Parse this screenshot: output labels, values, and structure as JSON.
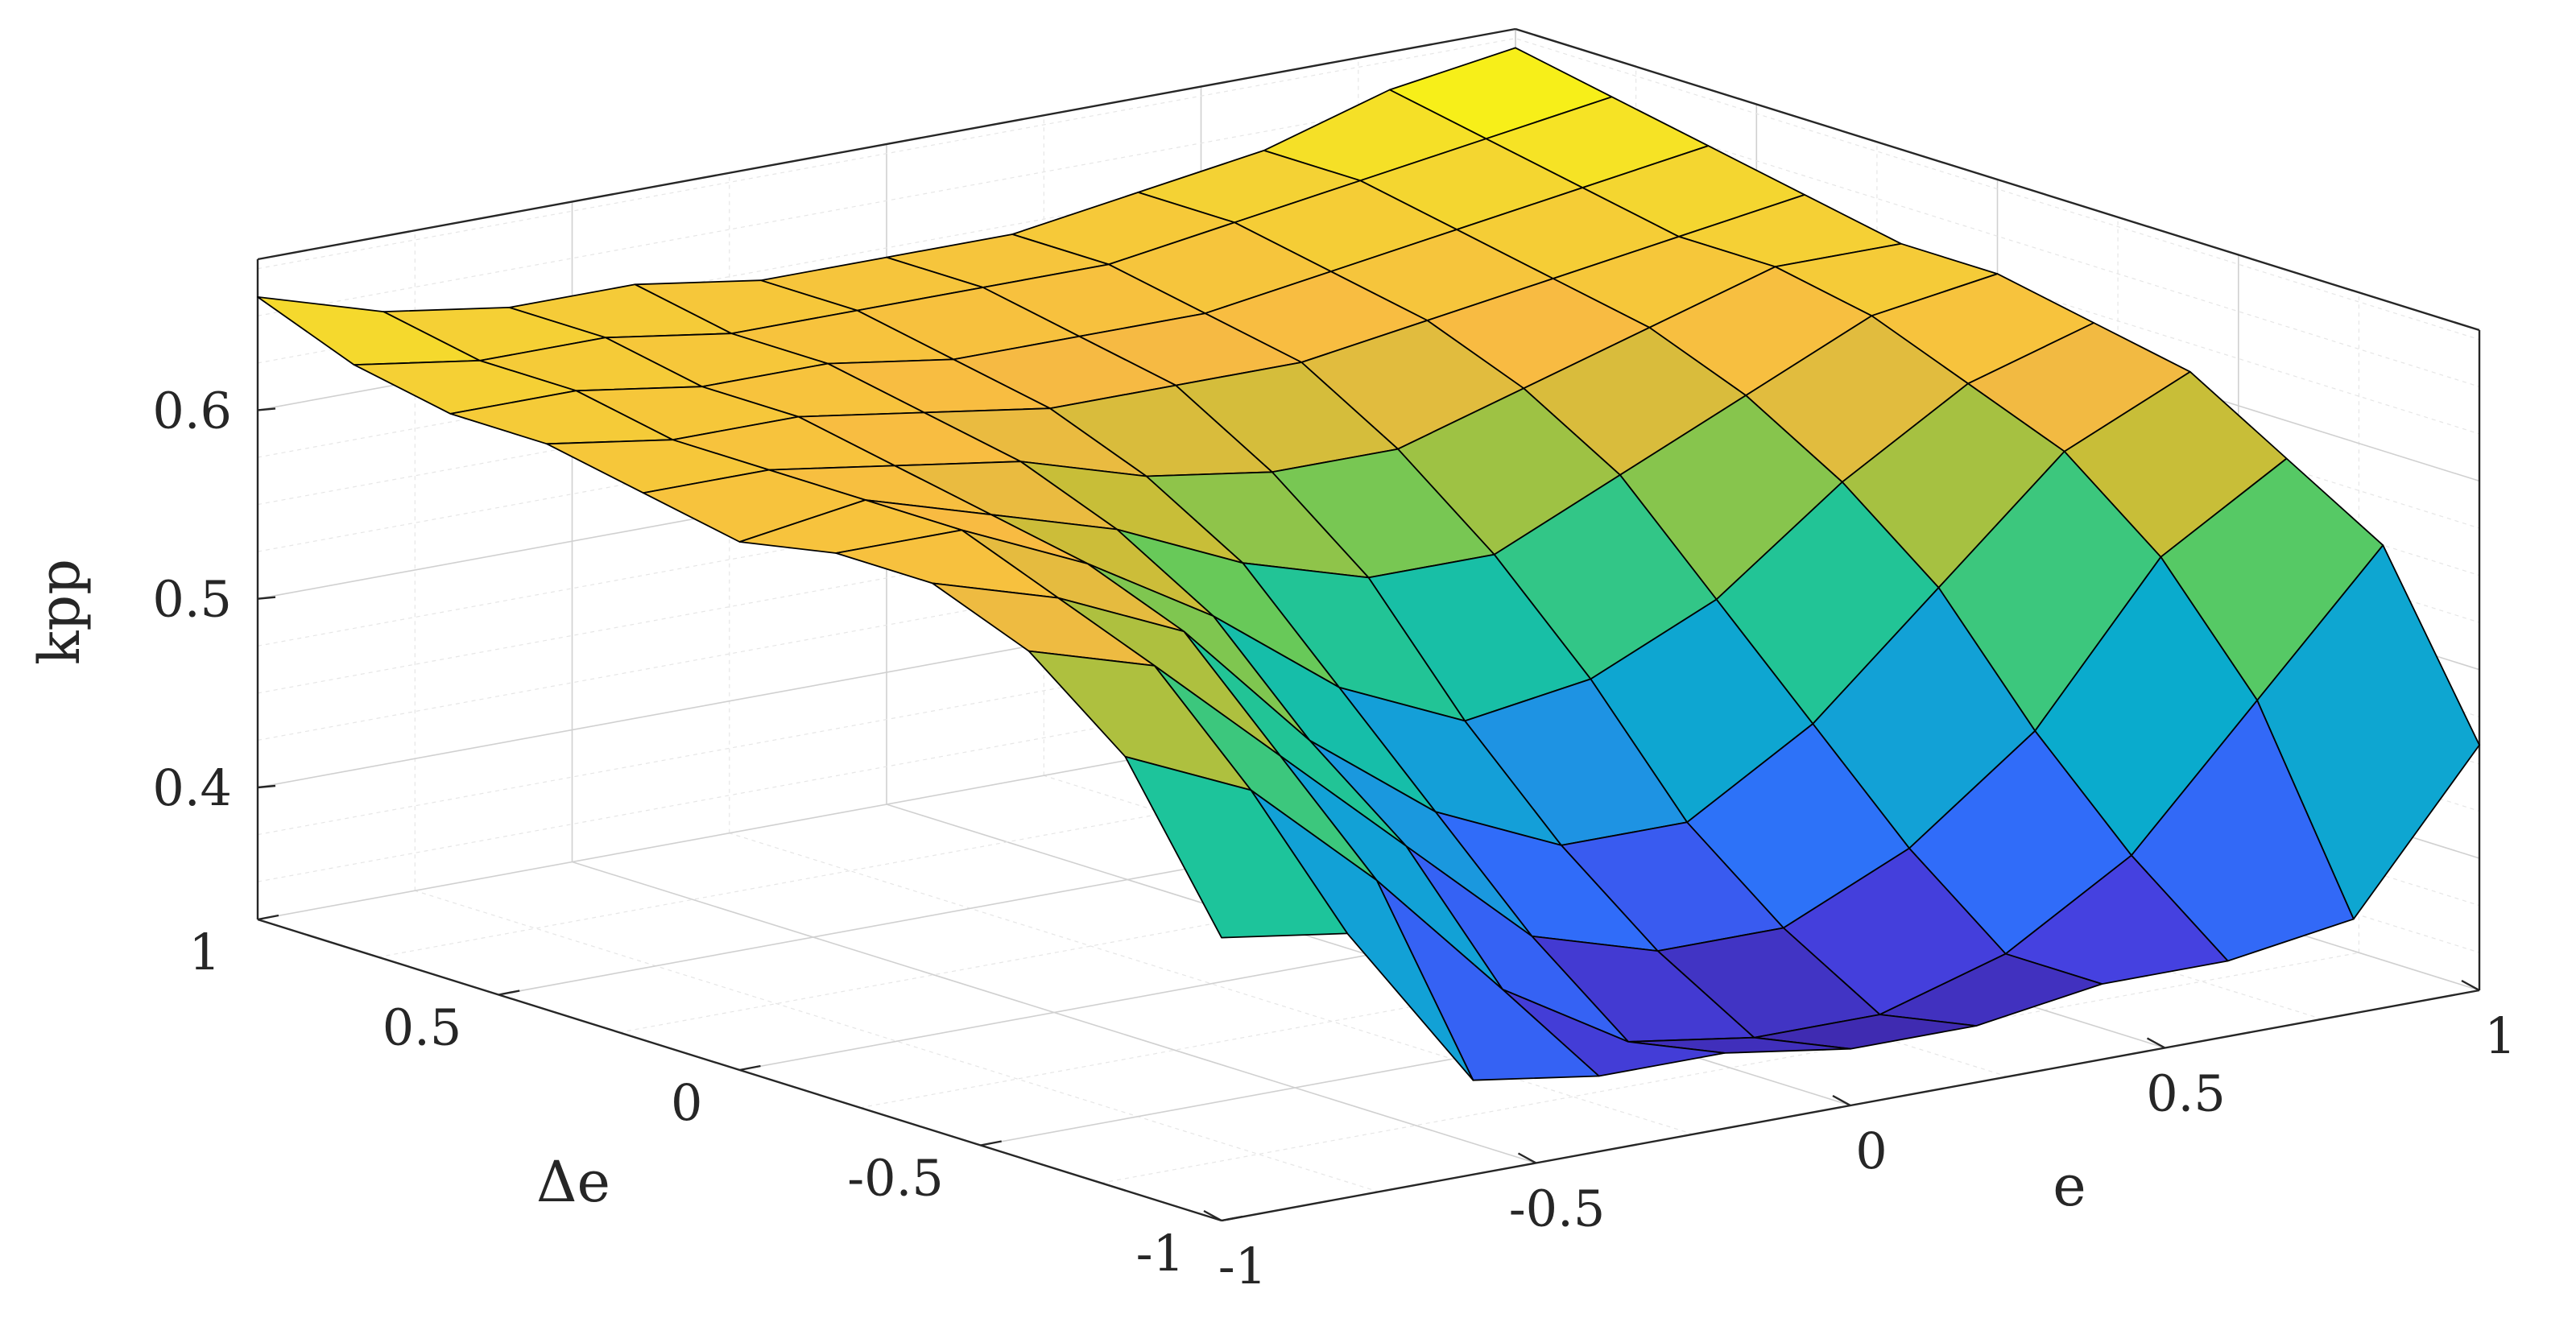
{
  "chart_data": {
    "type": "surface3d",
    "title": "",
    "xlabel": "e",
    "ylabel": "Δe",
    "zlabel": "kpp",
    "xlim": [
      -1,
      1
    ],
    "ylim": [
      -1,
      1
    ],
    "zlim": [
      0.33,
      0.68
    ],
    "x_ticks": [
      -1,
      -0.5,
      0,
      0.5,
      1
    ],
    "y_ticks": [
      -1,
      -0.5,
      0,
      0.5,
      1
    ],
    "z_ticks": [
      0.4,
      0.5,
      0.6
    ],
    "x_tick_labels": [
      "-1",
      "-0.5",
      "0",
      "0.5",
      "1"
    ],
    "y_tick_labels": [
      "-1",
      "-0.5",
      "0",
      "0.5",
      "1"
    ],
    "z_tick_labels": [
      "0.4",
      "0.5",
      "0.6"
    ],
    "grid": true,
    "colormap": "parula",
    "colormap_stops": [
      "#3e26a8",
      "#4543e4",
      "#2f6efa",
      "#1f92e4",
      "#06b0c8",
      "#1dc49b",
      "#5fca5c",
      "#c2be37",
      "#f8ba43",
      "#f4d432",
      "#f9fb0e"
    ],
    "x": [
      -1,
      -0.8,
      -0.6,
      -0.4,
      -0.2,
      0,
      0.2,
      0.4,
      0.6,
      0.8,
      1
    ],
    "y": [
      -1,
      -0.8,
      -0.6,
      -0.4,
      -0.2,
      0,
      0.2,
      0.4,
      0.6,
      0.8,
      1
    ],
    "z": [
      [
        0.48,
        0.47,
        0.38,
        0.37,
        0.37,
        0.36,
        0.36,
        0.37,
        0.37,
        0.38,
        0.46
      ],
      [
        0.56,
        0.53,
        0.47,
        0.4,
        0.36,
        0.35,
        0.35,
        0.37,
        0.41,
        0.48,
        0.55
      ],
      [
        0.6,
        0.58,
        0.52,
        0.46,
        0.4,
        0.38,
        0.38,
        0.41,
        0.46,
        0.54,
        0.58
      ],
      [
        0.62,
        0.6,
        0.57,
        0.5,
        0.45,
        0.42,
        0.42,
        0.46,
        0.52,
        0.58,
        0.61
      ],
      [
        0.62,
        0.62,
        0.59,
        0.55,
        0.5,
        0.47,
        0.48,
        0.51,
        0.56,
        0.6,
        0.62
      ],
      [
        0.61,
        0.62,
        0.6,
        0.58,
        0.55,
        0.53,
        0.53,
        0.56,
        0.59,
        0.62,
        0.63
      ],
      [
        0.62,
        0.62,
        0.61,
        0.6,
        0.58,
        0.57,
        0.57,
        0.59,
        0.61,
        0.63,
        0.63
      ],
      [
        0.63,
        0.62,
        0.62,
        0.61,
        0.6,
        0.6,
        0.6,
        0.61,
        0.62,
        0.63,
        0.64
      ],
      [
        0.63,
        0.63,
        0.62,
        0.62,
        0.61,
        0.61,
        0.61,
        0.62,
        0.63,
        0.64,
        0.65
      ],
      [
        0.64,
        0.63,
        0.63,
        0.62,
        0.62,
        0.62,
        0.62,
        0.63,
        0.64,
        0.65,
        0.66
      ],
      [
        0.66,
        0.64,
        0.63,
        0.63,
        0.62,
        0.62,
        0.62,
        0.63,
        0.64,
        0.66,
        0.67
      ]
    ]
  }
}
